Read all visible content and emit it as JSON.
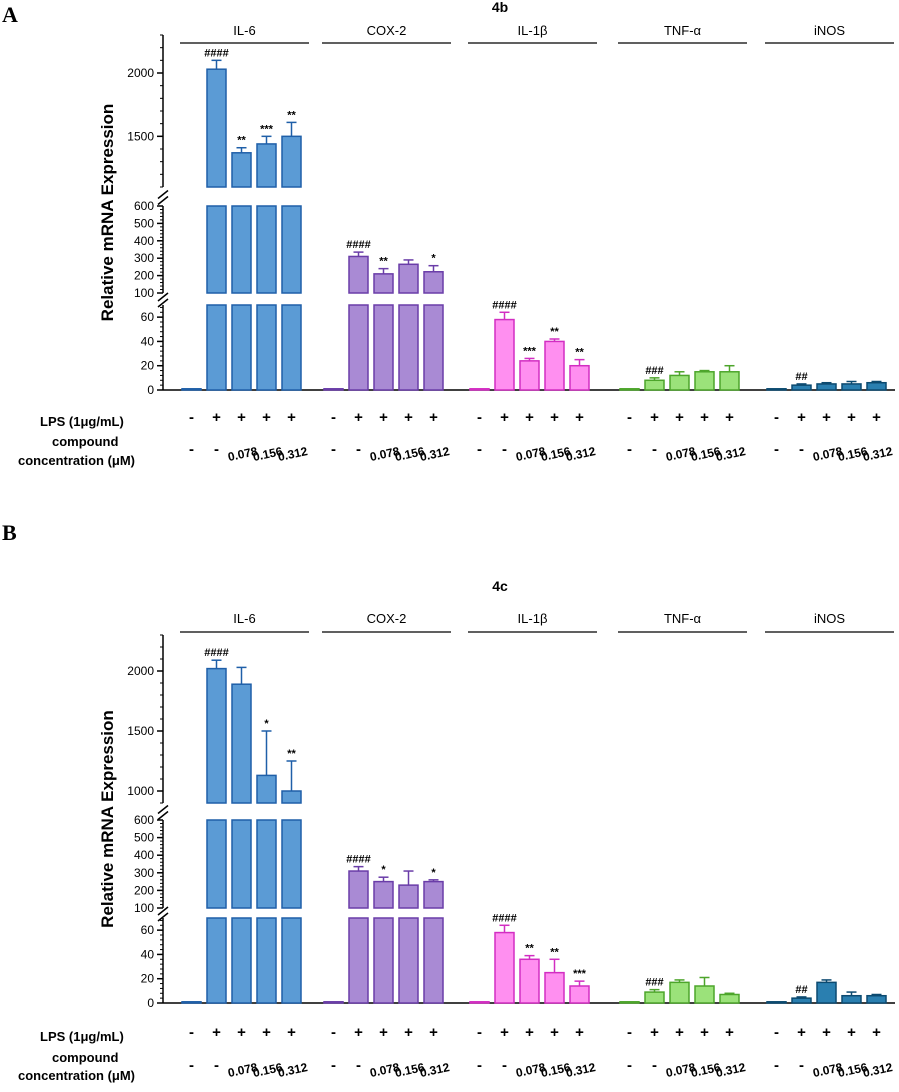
{
  "chart_data": [
    {
      "type": "bar",
      "panel": "A",
      "title": "4b",
      "ylabel": "Relative mRNA Expression",
      "y_segments": [
        {
          "range": [
            1100,
            2300
          ],
          "ticks": [
            "1500",
            "2000"
          ],
          "tick_values": [
            1500,
            2000
          ]
        },
        {
          "range": [
            100,
            600
          ],
          "ticks": [
            "100",
            "200",
            "300",
            "400",
            "500",
            "600"
          ],
          "tick_values": [
            100,
            200,
            300,
            400,
            500,
            600
          ]
        },
        {
          "range": [
            0,
            70
          ],
          "ticks": [
            "0",
            "20",
            "40",
            "60"
          ],
          "tick_values": [
            0,
            20,
            40,
            60
          ]
        }
      ],
      "row_labels": {
        "lps": "LPS (1μg/mL)",
        "compound_line1": "compound",
        "compound_line2": "concentration (μM)"
      },
      "lps_symbols": [
        "-",
        "+",
        "+",
        "+",
        "+"
      ],
      "conc_symbols": [
        "-",
        "-",
        "0.078",
        "0.156",
        "0.312"
      ],
      "groups": [
        {
          "name": "IL-6",
          "color": "#5b9bd5",
          "stroke": "#1f5fa8",
          "values": [
            1,
            2030,
            1370,
            1440,
            1500
          ],
          "errors": [
            0,
            70,
            40,
            60,
            110
          ],
          "sig": [
            "",
            "####",
            "**",
            "***",
            "**"
          ]
        },
        {
          "name": "COX-2",
          "color": "#a98ad4",
          "stroke": "#6a3da8",
          "values": [
            1,
            310,
            210,
            265,
            222
          ],
          "errors": [
            0,
            25,
            30,
            25,
            35
          ],
          "sig": [
            "",
            "####",
            "**",
            "",
            "*"
          ]
        },
        {
          "name": "IL-1β",
          "color": "#ff8ff0",
          "stroke": "#d22ec2",
          "values": [
            1,
            58,
            24,
            40,
            20
          ],
          "errors": [
            0,
            6,
            2,
            2,
            5
          ],
          "sig": [
            "",
            "####",
            "***",
            "**",
            "**"
          ]
        },
        {
          "name": "TNF-α",
          "color": "#9be27a",
          "stroke": "#4da52b",
          "values": [
            1,
            8,
            12,
            15,
            15
          ],
          "errors": [
            0,
            2,
            3,
            1,
            5
          ],
          "sig": [
            "",
            "###",
            "",
            "",
            ""
          ]
        },
        {
          "name": "iNOS",
          "color": "#2a7fb0",
          "stroke": "#0c4a70",
          "values": [
            1,
            4,
            5,
            5,
            6
          ],
          "errors": [
            0,
            1,
            1,
            2,
            1
          ],
          "sig": [
            "",
            "##",
            "",
            "",
            ""
          ]
        }
      ]
    },
    {
      "type": "bar",
      "panel": "B",
      "title": "4c",
      "ylabel": "Relative mRNA Expression",
      "y_segments": [
        {
          "range": [
            900,
            2300
          ],
          "ticks": [
            "1000",
            "1500",
            "2000"
          ],
          "tick_values": [
            1000,
            1500,
            2000
          ]
        },
        {
          "range": [
            100,
            600
          ],
          "ticks": [
            "100",
            "200",
            "300",
            "400",
            "500",
            "600"
          ],
          "tick_values": [
            100,
            200,
            300,
            400,
            500,
            600
          ]
        },
        {
          "range": [
            0,
            70
          ],
          "ticks": [
            "0",
            "20",
            "40",
            "60"
          ],
          "tick_values": [
            0,
            20,
            40,
            60
          ]
        }
      ],
      "row_labels": {
        "lps": "LPS (1μg/mL)",
        "compound_line1": "compound",
        "compound_line2": "concentration (μM)"
      },
      "lps_symbols": [
        "-",
        "+",
        "+",
        "+",
        "+"
      ],
      "conc_symbols": [
        "-",
        "-",
        "0.078",
        "0.156",
        "0.312"
      ],
      "groups": [
        {
          "name": "IL-6",
          "color": "#5b9bd5",
          "stroke": "#1f5fa8",
          "values": [
            1,
            2020,
            1890,
            1130,
            1000
          ],
          "errors": [
            0,
            70,
            140,
            370,
            250
          ],
          "sig": [
            "",
            "####",
            "",
            "*",
            "**"
          ]
        },
        {
          "name": "COX-2",
          "color": "#a98ad4",
          "stroke": "#6a3da8",
          "values": [
            1,
            310,
            250,
            230,
            250
          ],
          "errors": [
            0,
            25,
            25,
            80,
            10
          ],
          "sig": [
            "",
            "####",
            "*",
            "",
            "*"
          ]
        },
        {
          "name": "IL-1β",
          "color": "#ff8ff0",
          "stroke": "#d22ec2",
          "values": [
            1,
            58,
            36,
            25,
            14
          ],
          "errors": [
            0,
            6,
            3,
            11,
            4
          ],
          "sig": [
            "",
            "####",
            "**",
            "**",
            "***"
          ]
        },
        {
          "name": "TNF-α",
          "color": "#9be27a",
          "stroke": "#4da52b",
          "values": [
            1,
            9,
            17,
            14,
            7
          ],
          "errors": [
            0,
            2,
            2,
            7,
            1
          ],
          "sig": [
            "",
            "###",
            "",
            "",
            ""
          ]
        },
        {
          "name": "iNOS",
          "color": "#2a7fb0",
          "stroke": "#0c4a70",
          "values": [
            1,
            4,
            17,
            6,
            6
          ],
          "errors": [
            0,
            1,
            2,
            3,
            1
          ],
          "sig": [
            "",
            "##",
            "",
            "",
            ""
          ]
        }
      ]
    }
  ]
}
